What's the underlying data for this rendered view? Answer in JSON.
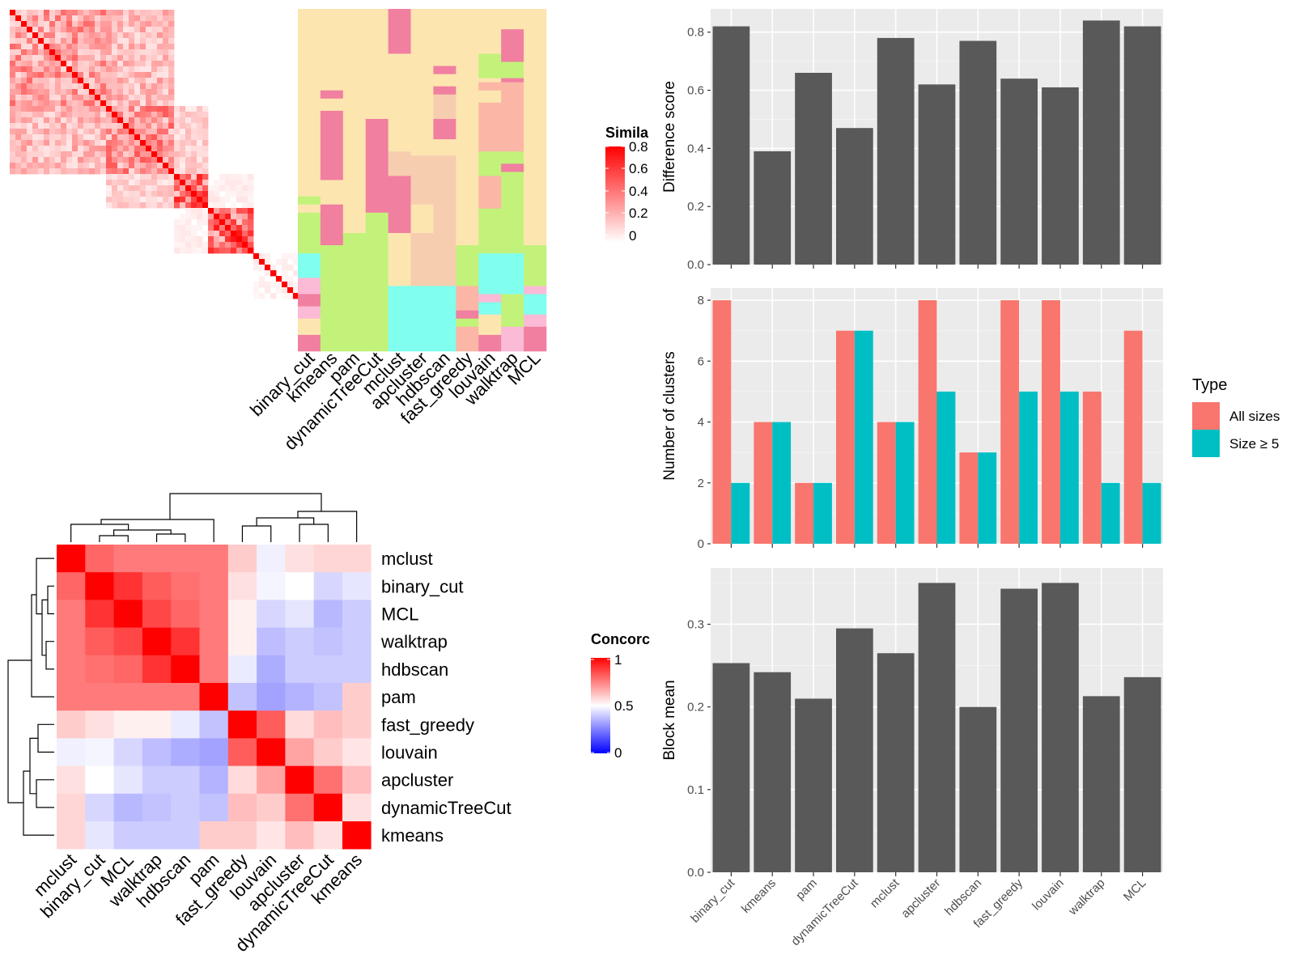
{
  "colors": {
    "panel_bg": "#ebebeb",
    "bar_dark": "#595959",
    "all_sizes": "#f8766d",
    "size5": "#00bfc4",
    "sim_low": "#ffffff",
    "sim_high": "#ff0000",
    "conc_low": "#0000ff",
    "conc_mid": "#ffffff",
    "conc_high": "#ff0000",
    "cluster_palette": [
      "#fde5b0",
      "#f07fa0",
      "#c2f27a",
      "#80ffee",
      "#fbbad5",
      "#fbb6a6",
      "#f7cdb0"
    ]
  },
  "similarity_legend": {
    "title": "Simila",
    "ticks": [
      "0.8",
      "0.6",
      "0.4",
      "0.2",
      "0"
    ]
  },
  "concordance_legend": {
    "title": "Concorc",
    "ticks": [
      "1",
      "0.5",
      "0"
    ]
  },
  "top_heatmap": {
    "method_labels": [
      "binary_cut",
      "kmeans",
      "pam",
      "dynamicTreeCut",
      "mclust",
      "apcluster",
      "hdbscan",
      "fast_greedy",
      "louvain",
      "walktrap",
      "MCL"
    ]
  },
  "concordance_heatmap": {
    "row_labels": [
      "mclust",
      "binary_cut",
      "MCL",
      "walktrap",
      "hdbscan",
      "pam",
      "fast_greedy",
      "louvain",
      "apcluster",
      "dynamicTreeCut",
      "kmeans"
    ],
    "col_labels": [
      "mclust",
      "binary_cut",
      "MCL",
      "walktrap",
      "hdbscan",
      "pam",
      "fast_greedy",
      "louvain",
      "apcluster",
      "dynamicTreeCut",
      "kmeans"
    ]
  },
  "bar_legend": {
    "title": "Type",
    "items": [
      "All sizes",
      "Size ≥ 5"
    ]
  },
  "chart_data": [
    {
      "type": "bar",
      "title": "",
      "xlabel": "",
      "ylabel": "Difference score",
      "categories": [
        "binary_cut",
        "kmeans",
        "pam",
        "dynamicTreeCut",
        "mclust",
        "apcluster",
        "hdbscan",
        "fast_greedy",
        "louvain",
        "walktrap",
        "MCL"
      ],
      "values": [
        0.82,
        0.39,
        0.66,
        0.47,
        0.78,
        0.62,
        0.77,
        0.64,
        0.61,
        0.84,
        0.82
      ],
      "ylim": [
        0,
        0.88
      ],
      "yticks": [
        "0.0",
        "0.2",
        "0.4",
        "0.6",
        "0.8"
      ],
      "grid": true
    },
    {
      "type": "bar",
      "title": "",
      "xlabel": "",
      "ylabel": "Number of clusters",
      "categories": [
        "binary_cut",
        "kmeans",
        "pam",
        "dynamicTreeCut",
        "mclust",
        "apcluster",
        "hdbscan",
        "fast_greedy",
        "louvain",
        "walktrap",
        "MCL"
      ],
      "series": [
        {
          "name": "All sizes",
          "values": [
            8,
            4,
            2,
            7,
            4,
            8,
            3,
            8,
            8,
            5,
            7
          ]
        },
        {
          "name": "Size ≥ 5",
          "values": [
            2,
            4,
            2,
            7,
            4,
            5,
            3,
            5,
            5,
            2,
            2
          ]
        }
      ],
      "ylim": [
        0,
        8.4
      ],
      "yticks": [
        "0",
        "2",
        "4",
        "6",
        "8"
      ],
      "legend": "right",
      "grid": true
    },
    {
      "type": "bar",
      "title": "",
      "xlabel": "",
      "ylabel": "Block mean",
      "categories": [
        "binary_cut",
        "kmeans",
        "pam",
        "dynamicTreeCut",
        "mclust",
        "apcluster",
        "hdbscan",
        "fast_greedy",
        "louvain",
        "walktrap",
        "MCL"
      ],
      "values": [
        0.253,
        0.242,
        0.21,
        0.295,
        0.265,
        0.35,
        0.2,
        0.343,
        0.35,
        0.213,
        0.236
      ],
      "ylim": [
        0,
        0.368
      ],
      "yticks": [
        "0.0",
        "0.1",
        "0.2",
        "0.3"
      ],
      "grid": true
    },
    {
      "type": "heatmap",
      "title": "",
      "legend_title": "Concorc",
      "rows": [
        "mclust",
        "binary_cut",
        "MCL",
        "walktrap",
        "hdbscan",
        "pam",
        "fast_greedy",
        "louvain",
        "apcluster",
        "dynamicTreeCut",
        "kmeans"
      ],
      "cols": [
        "mclust",
        "binary_cut",
        "MCL",
        "walktrap",
        "hdbscan",
        "pam",
        "fast_greedy",
        "louvain",
        "apcluster",
        "dynamicTreeCut",
        "kmeans"
      ],
      "values": [
        [
          1.0,
          0.8,
          0.76,
          0.76,
          0.76,
          0.76,
          0.6,
          0.47,
          0.56,
          0.58,
          0.58
        ],
        [
          0.8,
          1.0,
          0.9,
          0.82,
          0.78,
          0.76,
          0.56,
          0.48,
          0.5,
          0.42,
          0.45
        ],
        [
          0.76,
          0.9,
          1.0,
          0.86,
          0.8,
          0.76,
          0.53,
          0.42,
          0.45,
          0.36,
          0.4
        ],
        [
          0.76,
          0.82,
          0.86,
          1.0,
          0.9,
          0.76,
          0.53,
          0.37,
          0.4,
          0.38,
          0.4
        ],
        [
          0.76,
          0.78,
          0.8,
          0.9,
          1.0,
          0.76,
          0.46,
          0.34,
          0.4,
          0.4,
          0.4
        ],
        [
          0.76,
          0.76,
          0.76,
          0.76,
          0.76,
          1.0,
          0.38,
          0.32,
          0.35,
          0.38,
          0.6
        ],
        [
          0.6,
          0.56,
          0.53,
          0.53,
          0.46,
          0.38,
          1.0,
          0.82,
          0.57,
          0.63,
          0.6
        ],
        [
          0.47,
          0.48,
          0.42,
          0.37,
          0.34,
          0.32,
          0.82,
          1.0,
          0.68,
          0.6,
          0.55
        ],
        [
          0.56,
          0.5,
          0.45,
          0.4,
          0.4,
          0.35,
          0.57,
          0.68,
          1.0,
          0.78,
          0.63
        ],
        [
          0.58,
          0.42,
          0.36,
          0.38,
          0.4,
          0.38,
          0.63,
          0.6,
          0.78,
          1.0,
          0.56
        ],
        [
          0.58,
          0.45,
          0.4,
          0.4,
          0.4,
          0.6,
          0.6,
          0.55,
          0.63,
          0.56,
          1.0
        ]
      ],
      "ylim": [
        0,
        1
      ]
    },
    {
      "type": "heatmap",
      "title": "",
      "legend_title": "Simila",
      "n_terms": 60,
      "blocks": [
        {
          "size": 17,
          "within": 0.33,
          "to_next": 0.24
        },
        {
          "size": 12,
          "within": 0.36,
          "to_next": 0.16
        },
        {
          "size": 6,
          "within": 0.48,
          "to_next": 0.06
        },
        {
          "size": 8,
          "within": 0.5,
          "to_next": 0.0
        },
        {
          "size": 8,
          "within": 0.05,
          "to_next": 0.0
        },
        {
          "size": 9,
          "within": 0.1,
          "to_next": 0.0
        }
      ],
      "diagonal": 0.9,
      "ylim": [
        0,
        0.9
      ],
      "cluster_assignments": {
        "methods": [
          "binary_cut",
          "kmeans",
          "pam",
          "dynamicTreeCut",
          "mclust",
          "apcluster",
          "hdbscan",
          "fast_greedy",
          "louvain",
          "walktrap",
          "MCL"
        ],
        "segments": [
          [
            [
              0,
              46,
              0
            ],
            [
              46,
              48,
              2
            ],
            [
              48,
              50,
              0
            ],
            [
              50,
              60,
              2
            ],
            [
              60,
              66,
              3
            ],
            [
              66,
              70,
              4
            ],
            [
              70,
              73,
              1
            ],
            [
              73,
              76,
              4
            ],
            [
              76,
              80,
              0
            ],
            [
              80,
              84,
              1
            ]
          ],
          [
            [
              0,
              20,
              0
            ],
            [
              20,
              22,
              1
            ],
            [
              22,
              25,
              0
            ],
            [
              25,
              42,
              1
            ],
            [
              42,
              48,
              0
            ],
            [
              48,
              58,
              1
            ],
            [
              58,
              84,
              2
            ]
          ],
          [
            [
              0,
              55,
              0
            ],
            [
              55,
              58,
              2
            ],
            [
              58,
              84,
              2
            ]
          ],
          [
            [
              0,
              27,
              0
            ],
            [
              27,
              50,
              1
            ],
            [
              50,
              84,
              2
            ]
          ],
          [
            [
              0,
              11,
              1
            ],
            [
              11,
              35,
              0
            ],
            [
              35,
              41,
              6
            ],
            [
              41,
              55,
              1
            ],
            [
              55,
              68,
              0
            ],
            [
              68,
              84,
              3
            ]
          ],
          [
            [
              0,
              36,
              0
            ],
            [
              36,
              48,
              6
            ],
            [
              48,
              55,
              0
            ],
            [
              55,
              68,
              6
            ],
            [
              68,
              84,
              3
            ]
          ],
          [
            [
              0,
              14,
              0
            ],
            [
              14,
              16,
              1
            ],
            [
              16,
              19,
              0
            ],
            [
              19,
              21,
              1
            ],
            [
              21,
              27,
              6
            ],
            [
              27,
              32,
              1
            ],
            [
              32,
              36,
              0
            ],
            [
              36,
              55,
              6
            ],
            [
              55,
              68,
              6
            ],
            [
              68,
              84,
              3
            ]
          ],
          [
            [
              0,
              58,
              0
            ],
            [
              58,
              68,
              2
            ],
            [
              68,
              74,
              5
            ],
            [
              74,
              76,
              1
            ],
            [
              76,
              78,
              2
            ],
            [
              78,
              84,
              5
            ]
          ],
          [
            [
              0,
              11,
              0
            ],
            [
              11,
              17,
              2
            ],
            [
              17,
              18,
              0
            ],
            [
              18,
              20,
              5
            ],
            [
              20,
              23,
              0
            ],
            [
              23,
              24,
              5
            ],
            [
              24,
              35,
              5
            ],
            [
              35,
              41,
              2
            ],
            [
              41,
              49,
              5
            ],
            [
              49,
              60,
              2
            ],
            [
              60,
              70,
              3
            ],
            [
              70,
              72,
              4
            ],
            [
              72,
              75,
              3
            ],
            [
              75,
              80,
              0
            ],
            [
              80,
              84,
              1
            ]
          ],
          [
            [
              0,
              5,
              0
            ],
            [
              5,
              13,
              1
            ],
            [
              13,
              17,
              2
            ],
            [
              17,
              18,
              1
            ],
            [
              18,
              35,
              5
            ],
            [
              35,
              38,
              2
            ],
            [
              38,
              40,
              1
            ],
            [
              40,
              60,
              2
            ],
            [
              60,
              70,
              3
            ],
            [
              70,
              78,
              2
            ],
            [
              78,
              84,
              4
            ]
          ],
          [
            [
              0,
              58,
              0
            ],
            [
              58,
              68,
              2
            ],
            [
              68,
              70,
              4
            ],
            [
              70,
              75,
              3
            ],
            [
              75,
              78,
              4
            ],
            [
              78,
              84,
              1
            ]
          ]
        ]
      }
    }
  ]
}
